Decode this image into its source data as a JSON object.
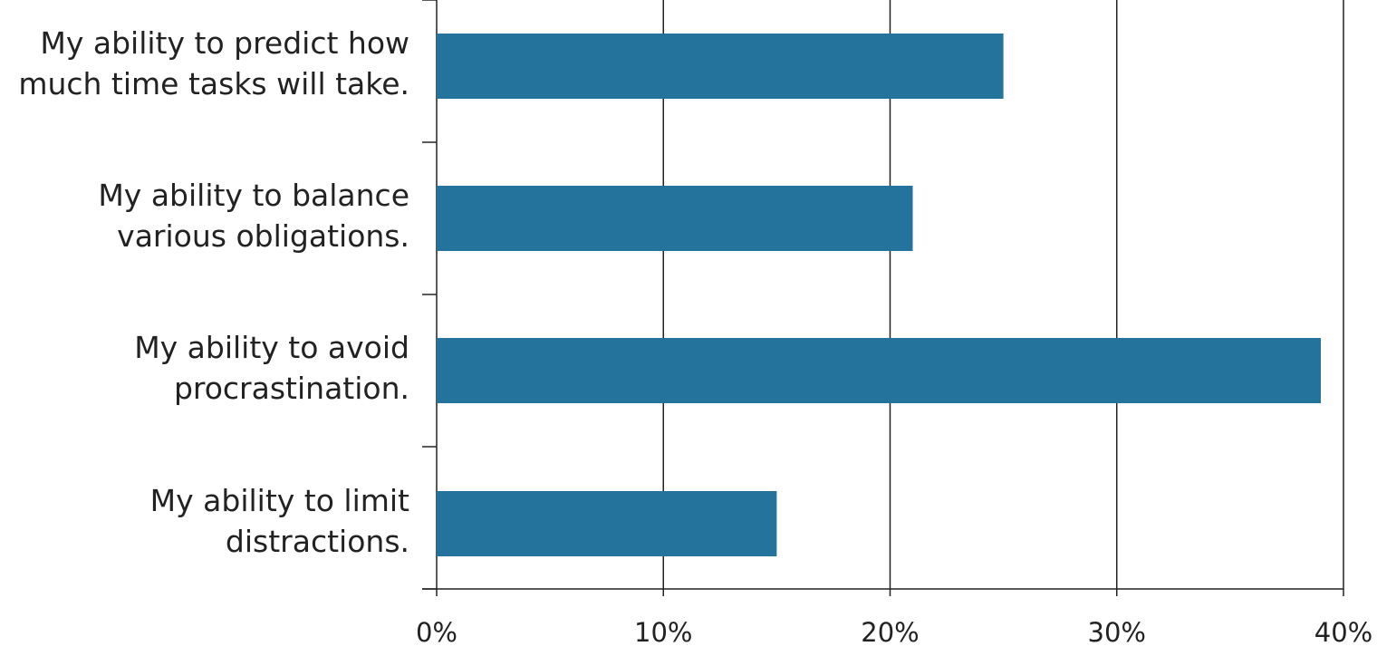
{
  "chart_data": {
    "type": "bar",
    "orientation": "horizontal",
    "title": "",
    "xlabel": "",
    "ylabel": "",
    "categories": [
      [
        "My ability to predict how",
        "much time tasks will take."
      ],
      [
        "My ability to balance",
        "various obligations."
      ],
      [
        "My ability to avoid",
        "procrastination."
      ],
      [
        "My ability to limit",
        "distractions."
      ]
    ],
    "values": [
      25,
      21,
      39,
      15
    ],
    "xlim": [
      0,
      40
    ],
    "xticks": [
      0,
      10,
      20,
      30,
      40
    ],
    "xtick_labels": [
      "0%",
      "10%",
      "20%",
      "30%",
      "40%"
    ],
    "grid": "vertical",
    "legend": "none",
    "bar_color": "#24739c"
  }
}
